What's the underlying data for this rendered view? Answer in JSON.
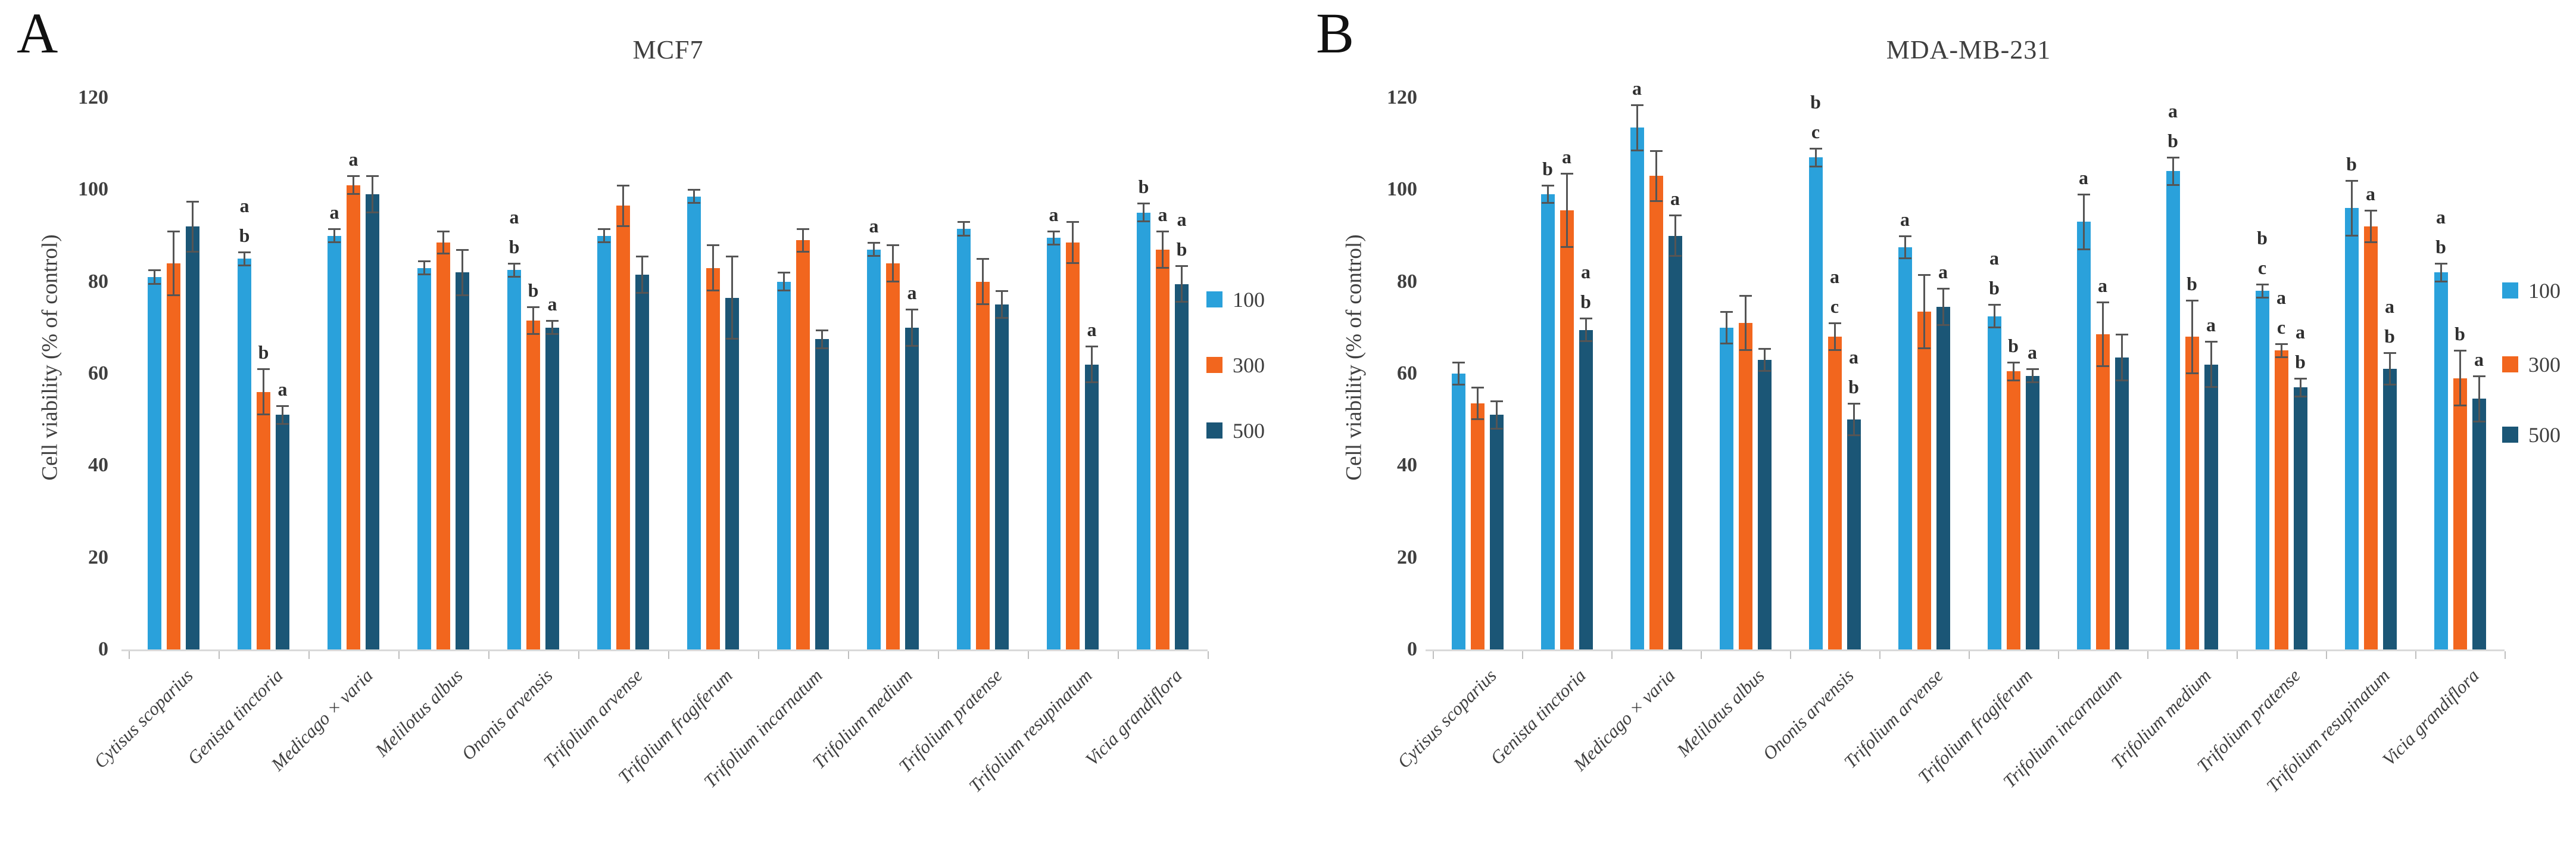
{
  "figure": {
    "panels": [
      {
        "panel_label": "A",
        "title": "MCF7",
        "ylabel": "Cell viability (% of control)",
        "legend_labels": [
          "100",
          "300",
          "500"
        ]
      },
      {
        "panel_label": "B",
        "title": "MDA-MB-231",
        "ylabel": "Cell viability (% of control)",
        "legend_labels": [
          "100",
          "300",
          "500"
        ]
      }
    ]
  },
  "colors": {
    "series_100": "#2AA1DB",
    "series_300": "#F2661E",
    "series_500": "#1B5676",
    "error_bar": "#555555",
    "axis_line": "#D9D9D9",
    "tick_mark": "#BFBFBF",
    "text": "#3F3F3F"
  },
  "chart_data": [
    {
      "type": "bar",
      "panel": "A",
      "title": "MCF7",
      "xlabel": "",
      "ylabel": "Cell viability (% of control)",
      "ylim": [
        0,
        120
      ],
      "yticks": [
        0,
        20,
        40,
        60,
        80,
        100,
        120
      ],
      "grid": false,
      "legend_position": "right",
      "categories": [
        "Cytisus scoparius",
        "Genista tinctoria",
        "Medicago × varia",
        "Melilotus albus",
        "Ononis arvensis",
        "Trifolium arvense",
        "Trifolium fragiferum",
        "Trifolium incarnatum",
        "Trifolium medium",
        "Trifolium pratense",
        "Trifolium resupinatum",
        "Vicia grandiflora"
      ],
      "series": [
        {
          "name": "100",
          "color": "series_100",
          "values": [
            81,
            85,
            90,
            83,
            82.5,
            90,
            98.5,
            80,
            87,
            91.5,
            89.5,
            95
          ],
          "errors": [
            1.5,
            1.5,
            1.5,
            1.5,
            1.5,
            1.5,
            1.5,
            2,
            1.5,
            1.5,
            1.5,
            2
          ],
          "letters": [
            [],
            [
              "a",
              "b"
            ],
            [
              "a"
            ],
            [],
            [
              "a",
              "b"
            ],
            [],
            [],
            [],
            [
              "a"
            ],
            [],
            [
              "a"
            ],
            [
              "b"
            ]
          ]
        },
        {
          "name": "300",
          "color": "series_300",
          "values": [
            84,
            56,
            101,
            88.5,
            71.5,
            96.5,
            83,
            89,
            84,
            80,
            88.5,
            87
          ],
          "errors": [
            7,
            5,
            2,
            2.5,
            3,
            4.5,
            5,
            2.5,
            4,
            5,
            4.5,
            4
          ],
          "letters": [
            [],
            [
              "b"
            ],
            [
              "a"
            ],
            [],
            [
              "b"
            ],
            [],
            [],
            [],
            [],
            [],
            [],
            [
              "a"
            ]
          ]
        },
        {
          "name": "500",
          "color": "series_500",
          "values": [
            92,
            51,
            99,
            82,
            70,
            81.5,
            76.5,
            67.5,
            70,
            75,
            62,
            79.5
          ],
          "errors": [
            5.5,
            2,
            4,
            5,
            1.5,
            4,
            9,
            2,
            4,
            3,
            4,
            4
          ],
          "letters": [
            [],
            [
              "a"
            ],
            [],
            [],
            [
              "a"
            ],
            [],
            [],
            [],
            [
              "a"
            ],
            [],
            [
              "a"
            ],
            [
              "a",
              "b"
            ]
          ]
        }
      ]
    },
    {
      "type": "bar",
      "panel": "B",
      "title": "MDA-MB-231",
      "xlabel": "",
      "ylabel": "Cell viability (% of control)",
      "ylim": [
        0,
        120
      ],
      "yticks": [
        0,
        20,
        40,
        60,
        80,
        100,
        120
      ],
      "grid": false,
      "legend_position": "right",
      "categories": [
        "Cytisus scoparius",
        "Genista tinctoria",
        "Medicago × varia",
        "Melilotus albus",
        "Ononis arvensis",
        "Trifolium arvense",
        "Trifolium fragiferum",
        "Trifolium incarnatum",
        "Trifolium medium",
        "Trifolium pratense",
        "Trifolium resupinatum",
        "Vicia grandiflora"
      ],
      "series": [
        {
          "name": "100",
          "color": "series_100",
          "values": [
            60,
            99,
            113.5,
            70,
            107,
            87.5,
            72.5,
            93,
            104,
            78,
            96,
            82
          ],
          "errors": [
            2.5,
            2,
            5,
            3.5,
            2,
            2.5,
            2.5,
            6,
            3,
            1.5,
            6,
            2
          ],
          "letters": [
            [],
            [
              "b"
            ],
            [
              "a"
            ],
            [],
            [
              "b",
              "c"
            ],
            [
              "a"
            ],
            [
              "a",
              "b"
            ],
            [
              "a"
            ],
            [
              "a",
              "b"
            ],
            [
              "b",
              "c"
            ],
            [
              "b"
            ],
            [
              "a",
              "b"
            ]
          ]
        },
        {
          "name": "300",
          "color": "series_300",
          "values": [
            53.5,
            95.5,
            103,
            71,
            68,
            73.5,
            60.5,
            68.5,
            68,
            65,
            92,
            59
          ],
          "errors": [
            3.5,
            8,
            5.5,
            6,
            3,
            8,
            2,
            7,
            8,
            1.5,
            3.5,
            6
          ],
          "letters": [
            [],
            [
              "a"
            ],
            [],
            [],
            [
              "a",
              "c"
            ],
            [],
            [
              "b"
            ],
            [
              "a"
            ],
            [
              "b"
            ],
            [
              "a",
              "c"
            ],
            [
              "a"
            ],
            [
              "b"
            ]
          ]
        },
        {
          "name": "500",
          "color": "series_500",
          "values": [
            51,
            69.5,
            90,
            63,
            50,
            74.5,
            59.5,
            63.5,
            62,
            57,
            61,
            54.5
          ],
          "errors": [
            3,
            2.5,
            4.5,
            2.5,
            3.5,
            4,
            1.5,
            5,
            5,
            2,
            3.5,
            5
          ],
          "letters": [
            [],
            [
              "a",
              "b"
            ],
            [
              "a"
            ],
            [],
            [
              "a",
              "b"
            ],
            [
              "a"
            ],
            [
              "a"
            ],
            [],
            [
              "a"
            ],
            [
              "a",
              "b"
            ],
            [
              "a",
              "b"
            ],
            [
              "a"
            ]
          ]
        }
      ]
    }
  ]
}
